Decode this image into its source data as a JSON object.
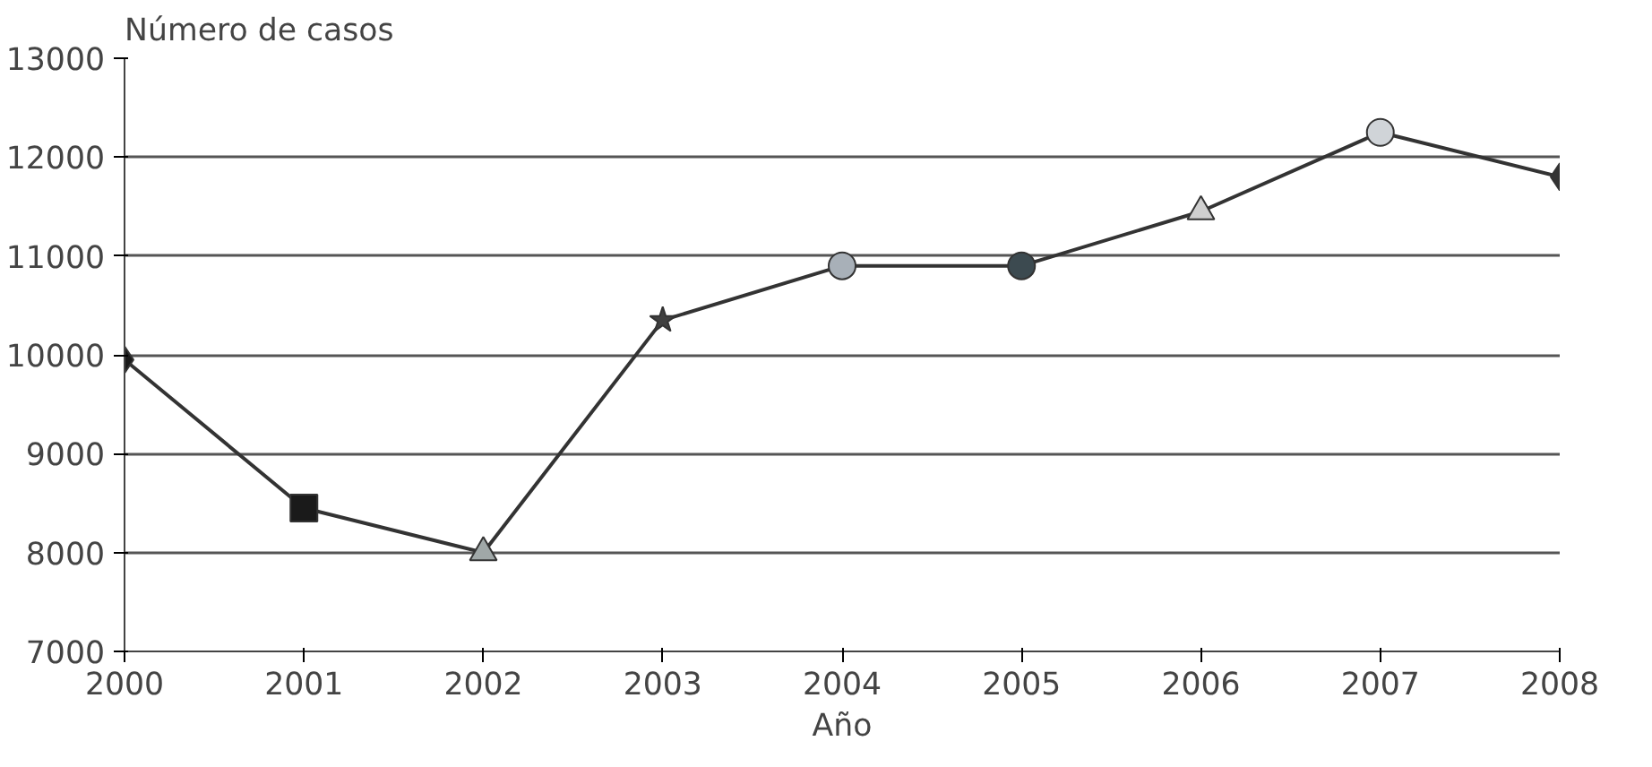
{
  "chart_data": {
    "type": "line",
    "ylabel": "Número de casos",
    "xlabel": "Año",
    "x": [
      2000,
      2001,
      2002,
      2003,
      2004,
      2005,
      2006,
      2007,
      2008
    ],
    "series": [
      {
        "color": "#333333",
        "marker": "none",
        "values": [
          9950,
          8450,
          8000,
          10350,
          10900,
          10900,
          11450,
          12250,
          11800
        ]
      },
      {
        "type": "scatter",
        "x": [
          2000
        ],
        "values": [
          9950
        ],
        "marker": "diamond",
        "color": "#1a1a1a"
      },
      {
        "type": "scatter",
        "x": [
          2001
        ],
        "values": [
          8450
        ],
        "marker": "square",
        "color": "#1a1a1a"
      },
      {
        "type": "scatter",
        "x": [
          2002
        ],
        "values": [
          8000
        ],
        "marker": "triangle",
        "color": "#a0a8a8"
      },
      {
        "type": "scatter",
        "x": [
          2003
        ],
        "values": [
          10350
        ],
        "marker": "star",
        "color": "#404040"
      },
      {
        "type": "scatter",
        "x": [
          2004
        ],
        "values": [
          10900
        ],
        "marker": "circle",
        "color": "#a8b0b8"
      },
      {
        "type": "scatter",
        "x": [
          2005
        ],
        "values": [
          10900
        ],
        "marker": "circle",
        "color": "#3c4a50"
      },
      {
        "type": "scatter",
        "x": [
          2006
        ],
        "values": [
          11450
        ],
        "marker": "triangle",
        "color": "#d0d0d0"
      },
      {
        "type": "scatter",
        "x": [
          2007
        ],
        "values": [
          12250
        ],
        "marker": "circle",
        "color": "#d0d4d8"
      },
      {
        "type": "scatter",
        "x": [
          2008
        ],
        "values": [
          11800
        ],
        "marker": "diamond",
        "color": "#333333"
      }
    ],
    "xlim": [
      2000,
      2008
    ],
    "xticks": [
      2000,
      2001,
      2002,
      2003,
      2004,
      2005,
      2006,
      2007,
      2008
    ],
    "ylim": [
      7000,
      13000
    ],
    "yticks": [
      7000,
      8000,
      9000,
      10000,
      11000,
      12000,
      13000
    ],
    "grid": "y"
  }
}
